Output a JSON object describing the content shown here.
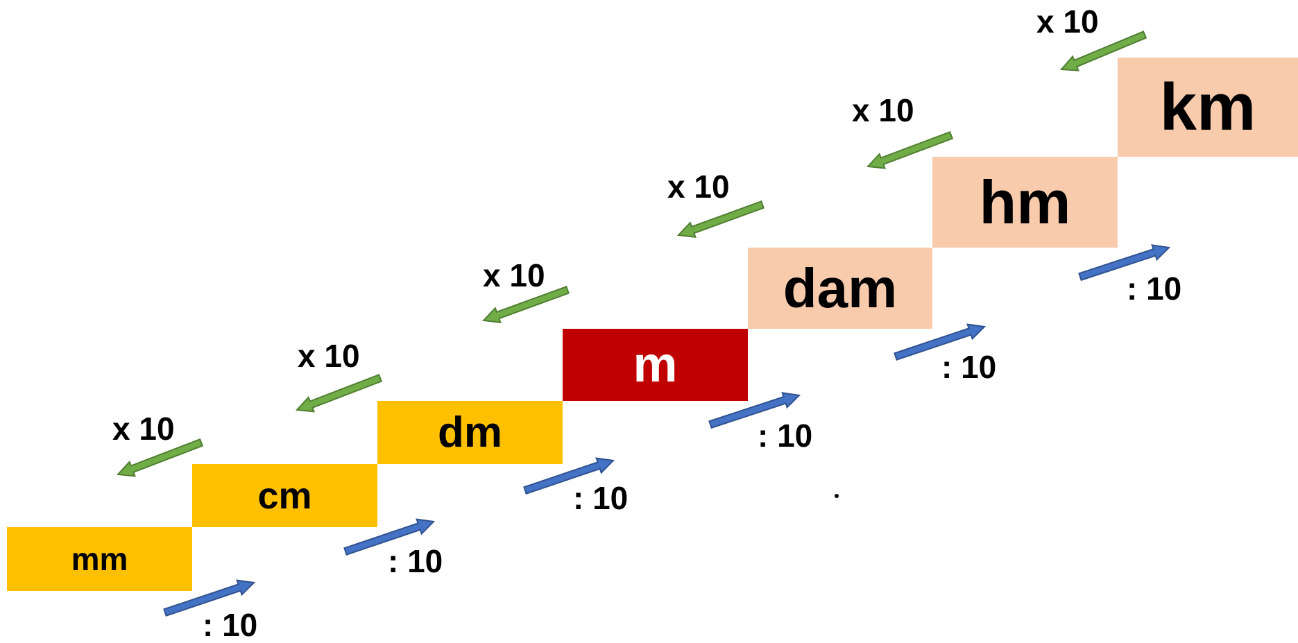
{
  "units": [
    {
      "label": "mm",
      "fill": "#FFC000",
      "text_color": "#000000"
    },
    {
      "label": "cm",
      "fill": "#FFC000",
      "text_color": "#000000"
    },
    {
      "label": "dm",
      "fill": "#FFC000",
      "text_color": "#000000"
    },
    {
      "label": "m",
      "fill": "#C00000",
      "text_color": "#FFFFFF"
    },
    {
      "label": "dam",
      "fill": "#F8CBAD",
      "text_color": "#000000"
    },
    {
      "label": "hm",
      "fill": "#F8CBAD",
      "text_color": "#000000"
    },
    {
      "label": "km",
      "fill": "#F8CBAD",
      "text_color": "#000000"
    }
  ],
  "multiply_label": "x 10",
  "divide_label": ": 10",
  "colors": {
    "multiply_arrow": "#70AD47",
    "multiply_arrow_outline": "#507E32",
    "divide_arrow": "#4472C4",
    "divide_arrow_outline": "#2F528F"
  }
}
